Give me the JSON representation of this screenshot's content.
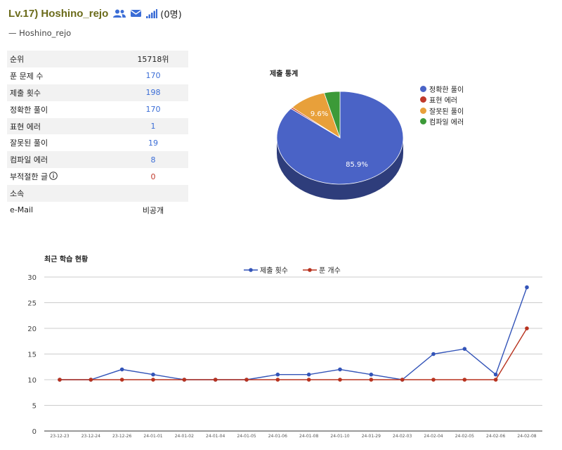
{
  "profile": {
    "title": "Lv.17) Hoshino_rejo",
    "follower_count": "(0명)",
    "motto": "— Hoshino_rejo"
  },
  "stats": [
    {
      "label": "순위",
      "value": "15718위",
      "style": "plain"
    },
    {
      "label": "푼 문제 수",
      "value": "170",
      "style": "link"
    },
    {
      "label": "제출 횟수",
      "value": "198",
      "style": "link"
    },
    {
      "label": "정확한 풀이",
      "value": "170",
      "style": "link"
    },
    {
      "label": "표현 에러",
      "value": "1",
      "style": "link"
    },
    {
      "label": "잘못된 풀이",
      "value": "19",
      "style": "link"
    },
    {
      "label": "컴파일 에러",
      "value": "8",
      "style": "link"
    },
    {
      "label": "부적절한 글",
      "value": "0",
      "style": "red",
      "info": true
    },
    {
      "label": "소속",
      "value": "",
      "style": "plain"
    },
    {
      "label": "e-Mail",
      "value": "비공개",
      "style": "plain"
    }
  ],
  "chart_data": [
    {
      "type": "pie",
      "title": "제출 통계",
      "labels": [
        "정확한 풀이",
        "표현 에러",
        "잘못된 풀이",
        "컴파일 에러"
      ],
      "values": [
        170,
        1,
        19,
        8
      ],
      "slice_labels": [
        "85.9%",
        "",
        "9.6%",
        ""
      ],
      "colors": [
        "#4a63c6",
        "#c0392b",
        "#e8a03a",
        "#3c9a38"
      ],
      "legend": "right"
    },
    {
      "type": "line",
      "title": "최근 학습 현황",
      "x": [
        "23-12-23",
        "23-12-24",
        "23-12-26",
        "24-01-01",
        "24-01-02",
        "24-01-04",
        "24-01-05",
        "24-01-06",
        "24-01-08",
        "24-01-10",
        "24-01-29",
        "24-02-03",
        "24-02-04",
        "24-02-05",
        "24-02-06",
        "24-02-08"
      ],
      "series": [
        {
          "name": "제출 횟수",
          "color": "#3354b8",
          "values": [
            10,
            10,
            12,
            11,
            10,
            10,
            10,
            11,
            11,
            12,
            11,
            10,
            15,
            16,
            11,
            28
          ]
        },
        {
          "name": "푼 개수",
          "color": "#b8321e",
          "values": [
            10,
            10,
            10,
            10,
            10,
            10,
            10,
            10,
            10,
            10,
            10,
            10,
            10,
            10,
            10,
            20
          ]
        }
      ],
      "ylim": [
        0,
        30
      ],
      "yticks": [
        0,
        5,
        10,
        15,
        20,
        25,
        30
      ],
      "grid": true,
      "legend": "top"
    }
  ]
}
